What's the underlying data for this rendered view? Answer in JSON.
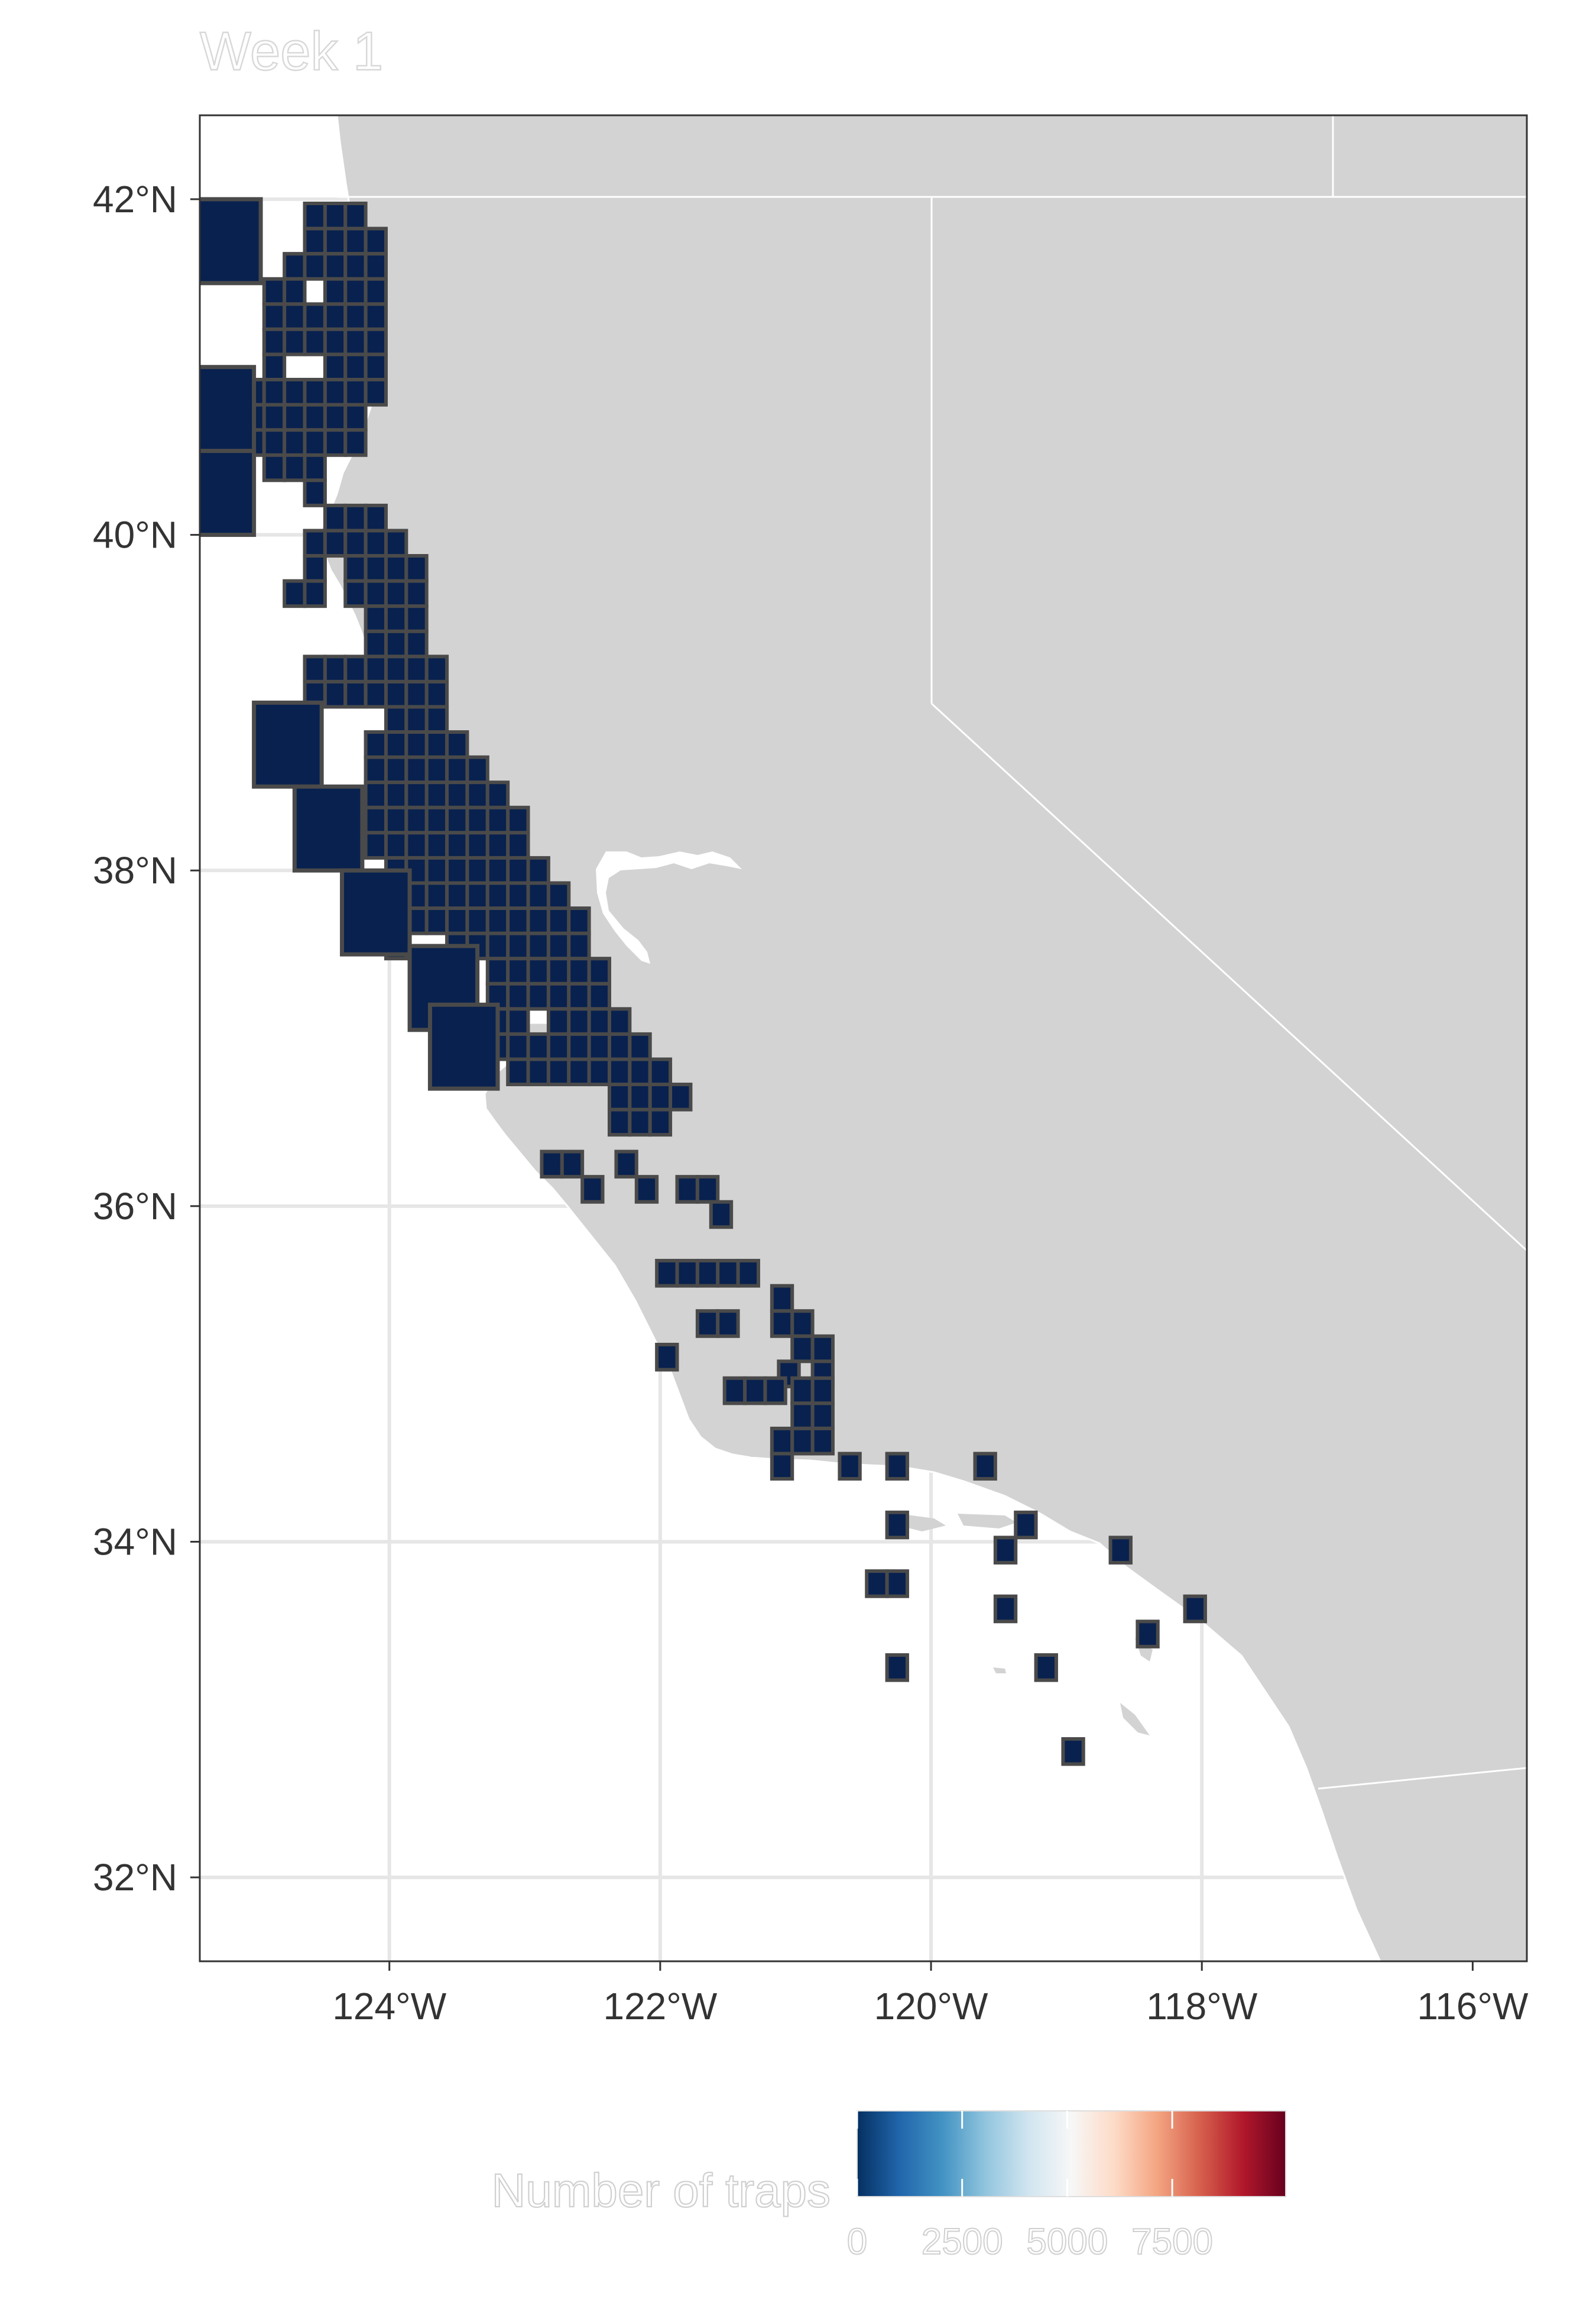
{
  "title": "Week 1",
  "map": {
    "lat_ticks": [
      "42°N",
      "40°N",
      "38°N",
      "36°N",
      "34°N",
      "32°N"
    ],
    "lon_ticks": [
      "124°W",
      "122°W",
      "120°W",
      "118°W",
      "116°W"
    ],
    "land_color": "#d3d3d3",
    "ocean_color": "#ffffff",
    "grid_color": "#e6e6e6",
    "cell_fill": "#08214f",
    "cell_stroke": "#4a4a4a"
  },
  "legend": {
    "title": "Number of traps",
    "ticks": [
      "0",
      "2500",
      "5000",
      "7500"
    ],
    "colors": [
      "#053061",
      "#2166ac",
      "#4393c3",
      "#92c5de",
      "#d1e5f0",
      "#f7f7f7",
      "#fddbc7",
      "#f4a582",
      "#d6604d",
      "#b2182b",
      "#67001f"
    ]
  },
  "chart_data": {
    "type": "heatmap",
    "title": "Week 1",
    "xlabel": "",
    "ylabel": "",
    "xlim": [
      -125.4,
      -115.6
    ],
    "ylim": [
      31.5,
      42.5
    ],
    "colorbar": {
      "label": "Number of traps",
      "ticks": [
        0,
        2500,
        5000,
        7500
      ]
    },
    "cell_value_note": "all visible cells at low end of scale (~0)",
    "cells": {
      "fine_rows": [
        {
          "lat": 41.9,
          "lons": [
            -124.55,
            -124.4,
            -124.25
          ]
        },
        {
          "lat": 41.75,
          "lons": [
            -124.55,
            -124.4,
            -124.25,
            -124.1
          ]
        },
        {
          "lat": 41.6,
          "lons": [
            -124.7,
            -124.55,
            -124.4,
            -124.25,
            -124.1
          ]
        },
        {
          "lat": 41.45,
          "lons": [
            -124.85,
            -124.7,
            -124.4,
            -124.25,
            -124.1
          ]
        },
        {
          "lat": 41.3,
          "lons": [
            -124.85,
            -124.7,
            -124.55,
            -124.4,
            -124.25,
            -124.1
          ]
        },
        {
          "lat": 41.15,
          "lons": [
            -124.85,
            -124.7,
            -124.55,
            -124.4,
            -124.25,
            -124.1
          ]
        },
        {
          "lat": 41.0,
          "lons": [
            -124.85,
            -124.4,
            -124.25,
            -124.1
          ]
        },
        {
          "lat": 40.85,
          "lons": [
            -125.0,
            -124.85,
            -124.7,
            -124.55,
            -124.4,
            -124.25,
            -124.1
          ]
        },
        {
          "lat": 40.7,
          "lons": [
            -125.0,
            -124.85,
            -124.7,
            -124.55,
            -124.4,
            -124.25
          ]
        },
        {
          "lat": 40.55,
          "lons": [
            -125.0,
            -124.85,
            -124.7,
            -124.55,
            -124.4,
            -124.25
          ]
        },
        {
          "lat": 40.4,
          "lons": [
            -124.85,
            -124.7,
            -124.55
          ]
        },
        {
          "lat": 40.25,
          "lons": [
            -124.55
          ]
        },
        {
          "lat": 40.1,
          "lons": [
            -124.4,
            -124.25,
            -124.1
          ]
        },
        {
          "lat": 39.95,
          "lons": [
            -124.55,
            -124.4,
            -124.25,
            -124.1,
            -123.95
          ]
        },
        {
          "lat": 39.8,
          "lons": [
            -124.55,
            -124.25,
            -124.1,
            -123.95,
            -123.8
          ]
        },
        {
          "lat": 39.65,
          "lons": [
            -124.7,
            -124.55,
            -124.25,
            -124.1,
            -123.95,
            -123.8
          ]
        },
        {
          "lat": 39.5,
          "lons": [
            -124.1,
            -123.95,
            -123.8
          ]
        },
        {
          "lat": 39.35,
          "lons": [
            -124.1,
            -123.95,
            -123.8
          ]
        },
        {
          "lat": 39.2,
          "lons": [
            -124.55,
            -124.4,
            -124.25,
            -124.1,
            -123.95,
            -123.8,
            -123.65
          ]
        },
        {
          "lat": 39.05,
          "lons": [
            -124.55,
            -124.4,
            -124.25,
            -124.1,
            -123.95,
            -123.8,
            -123.65
          ]
        },
        {
          "lat": 38.9,
          "lons": [
            -123.95,
            -123.8,
            -123.65
          ]
        },
        {
          "lat": 38.75,
          "lons": [
            -124.1,
            -123.95,
            -123.8,
            -123.65,
            -123.5
          ]
        },
        {
          "lat": 38.6,
          "lons": [
            -124.1,
            -123.95,
            -123.8,
            -123.65,
            -123.5,
            -123.35
          ]
        },
        {
          "lat": 38.45,
          "lons": [
            -124.1,
            -123.95,
            -123.8,
            -123.65,
            -123.5,
            -123.35,
            -123.2
          ]
        },
        {
          "lat": 38.3,
          "lons": [
            -124.25,
            -124.1,
            -123.95,
            -123.8,
            -123.65,
            -123.5,
            -123.35,
            -123.2,
            -123.05
          ]
        },
        {
          "lat": 38.15,
          "lons": [
            -124.1,
            -123.95,
            -123.8,
            -123.65,
            -123.5,
            -123.35,
            -123.2,
            -123.05
          ]
        },
        {
          "lat": 38.0,
          "lons": [
            -123.95,
            -123.8,
            -123.65,
            -123.5,
            -123.35,
            -123.2,
            -123.05,
            -122.9
          ]
        },
        {
          "lat": 37.85,
          "lons": [
            -123.8,
            -123.65,
            -123.5,
            -123.35,
            -123.2,
            -123.05,
            -122.9,
            -122.75
          ]
        },
        {
          "lat": 37.7,
          "lons": [
            -123.8,
            -123.65,
            -123.5,
            -123.35,
            -123.2,
            -123.05,
            -122.9,
            -122.75,
            -122.6
          ]
        },
        {
          "lat": 37.55,
          "lons": [
            -123.95,
            -123.5,
            -123.35,
            -123.2,
            -123.05,
            -122.9,
            -122.75,
            -122.6
          ]
        },
        {
          "lat": 37.4,
          "lons": [
            -123.2,
            -123.05,
            -122.9,
            -122.75,
            -122.6,
            -122.45
          ]
        },
        {
          "lat": 37.25,
          "lons": [
            -123.2,
            -123.05,
            -122.9,
            -122.75,
            -122.6,
            -122.45
          ]
        },
        {
          "lat": 37.1,
          "lons": [
            -123.2,
            -123.05,
            -122.75,
            -122.6,
            -122.45,
            -122.3
          ]
        },
        {
          "lat": 36.95,
          "lons": [
            -123.2,
            -123.05,
            -122.9,
            -122.75,
            -122.6,
            -122.45,
            -122.3,
            -122.15
          ]
        },
        {
          "lat": 36.8,
          "lons": [
            -123.05,
            -122.9,
            -122.75,
            -122.6,
            -122.45,
            -122.3,
            -122.15,
            -122.0
          ]
        },
        {
          "lat": 36.65,
          "lons": [
            -122.3,
            -122.15,
            -122.0,
            -121.85
          ]
        },
        {
          "lat": 36.5,
          "lons": [
            -122.3,
            -122.15,
            -122.0
          ]
        },
        {
          "lat": 36.25,
          "lons": [
            -122.8,
            -122.65,
            -122.25
          ]
        },
        {
          "lat": 36.1,
          "lons": [
            -122.5,
            -122.1,
            -121.8,
            -121.65
          ]
        },
        {
          "lat": 35.95,
          "lons": [
            -121.55
          ]
        },
        {
          "lat": 35.6,
          "lons": [
            -121.95,
            -121.8,
            -121.65,
            -121.5,
            -121.35
          ]
        },
        {
          "lat": 35.45,
          "lons": [
            -121.1
          ]
        },
        {
          "lat": 35.3,
          "lons": [
            -121.65,
            -121.5,
            -121.1,
            -120.95
          ]
        },
        {
          "lat": 35.15,
          "lons": [
            -120.95,
            -120.8
          ]
        },
        {
          "lat": 35.1,
          "lons": [
            -121.95
          ]
        },
        {
          "lat": 35.0,
          "lons": [
            -121.05,
            -120.8
          ]
        },
        {
          "lat": 34.9,
          "lons": [
            -121.45,
            -121.3,
            -121.15,
            -120.95,
            -120.8
          ]
        },
        {
          "lat": 34.75,
          "lons": [
            -120.95,
            -120.8
          ]
        },
        {
          "lat": 34.6,
          "lons": [
            -121.1,
            -120.95,
            -120.8
          ]
        },
        {
          "lat": 34.45,
          "lons": [
            -121.1,
            -120.6,
            -120.25,
            -119.6
          ]
        },
        {
          "lat": 34.1,
          "lons": [
            -120.25,
            -119.3
          ]
        },
        {
          "lat": 33.95,
          "lons": [
            -119.45,
            -118.6
          ]
        },
        {
          "lat": 33.75,
          "lons": [
            -120.4,
            -120.25
          ]
        },
        {
          "lat": 33.6,
          "lons": [
            -119.45,
            -118.05
          ]
        },
        {
          "lat": 33.45,
          "lons": [
            -118.4
          ]
        },
        {
          "lat": 33.25,
          "lons": [
            -120.25,
            -119.15
          ]
        },
        {
          "lat": 32.75,
          "lons": [
            -118.95
          ]
        }
      ],
      "large": [
        {
          "lat": 41.75,
          "lon": -125.2
        },
        {
          "lat": 40.75,
          "lon": -125.25
        },
        {
          "lat": 40.25,
          "lon": -125.25
        },
        {
          "lat": 38.75,
          "lon": -124.75
        },
        {
          "lat": 38.25,
          "lon": -124.45
        },
        {
          "lat": 37.75,
          "lon": -124.1
        },
        {
          "lat": 37.3,
          "lon": -123.6
        },
        {
          "lat": 36.95,
          "lon": -123.45
        }
      ]
    }
  }
}
